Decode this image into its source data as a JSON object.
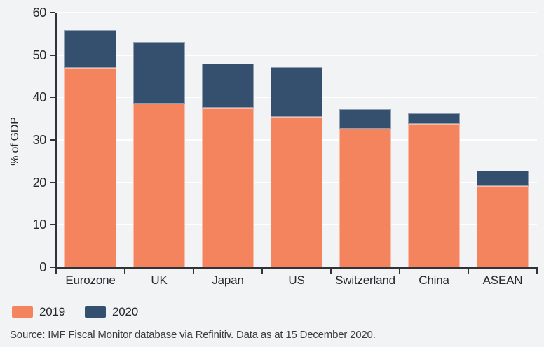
{
  "chart": {
    "y_axis_title": "% of GDP",
    "source": "Source: IMF Fiscal Monitor database via Refinitiv. Data as at 15 December 2020.",
    "colors": {
      "background": "#F2F3F4",
      "gridline": "#FFFFFF",
      "axis": "#303338",
      "series_2019": "#F4845E",
      "series_2020": "#34506E"
    }
  },
  "chart_data": {
    "type": "bar",
    "stacked": true,
    "title": "",
    "xlabel": "",
    "ylabel": "% of GDP",
    "ylim": [
      0,
      60
    ],
    "yticks": [
      0,
      10,
      20,
      30,
      40,
      50,
      60
    ],
    "grid": true,
    "legend_position": "bottom-left",
    "categories": [
      "Eurozone",
      "UK",
      "Japan",
      "US",
      "Switzerland",
      "China",
      "ASEAN"
    ],
    "series": [
      {
        "name": "2019",
        "color": "#F4845E",
        "values": [
          47.0,
          38.5,
          37.5,
          35.5,
          32.6,
          33.8,
          19.2
        ]
      },
      {
        "name": "2020",
        "color": "#34506E",
        "values": [
          8.8,
          14.6,
          10.5,
          11.7,
          4.7,
          2.4,
          3.6
        ]
      }
    ],
    "stacked_totals": [
      55.8,
      53.1,
      48.0,
      47.2,
      37.3,
      36.2,
      22.8
    ]
  }
}
